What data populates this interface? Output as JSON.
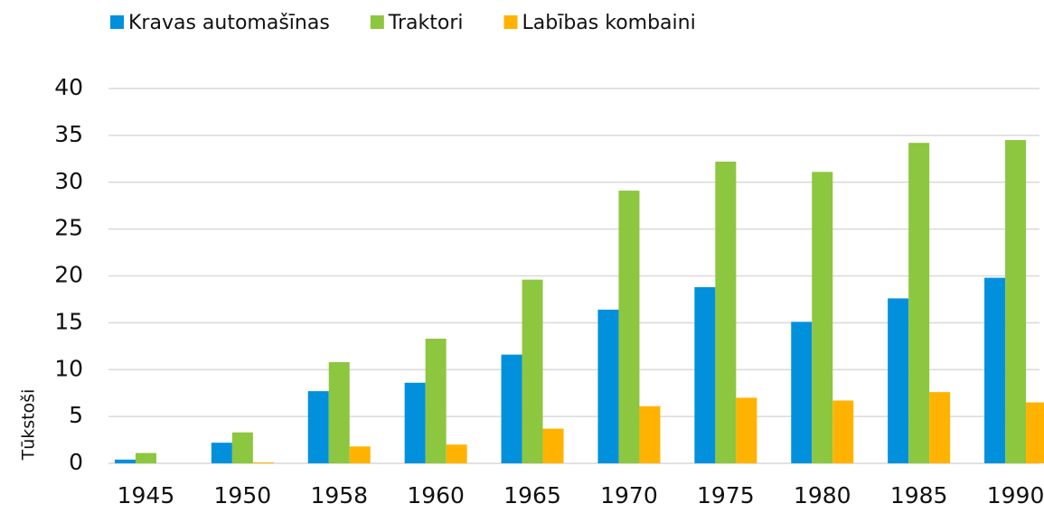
{
  "chart_data": {
    "type": "bar",
    "categories": [
      "1945",
      "1950",
      "1958",
      "1960",
      "1965",
      "1970",
      "1975",
      "1980",
      "1985",
      "1990"
    ],
    "series": [
      {
        "name": "Kravas automašīnas",
        "color": "#0090dc",
        "values": [
          0.4,
          2.2,
          7.7,
          8.6,
          11.6,
          16.4,
          18.8,
          15.1,
          17.6,
          19.8
        ]
      },
      {
        "name": "Traktori",
        "color": "#8dc63f",
        "values": [
          1.1,
          3.3,
          10.8,
          13.3,
          19.6,
          29.1,
          32.2,
          31.1,
          34.2,
          34.5
        ]
      },
      {
        "name": "Labības kombaini",
        "color": "#ffb300",
        "values": [
          0,
          0.1,
          1.8,
          2.0,
          3.7,
          6.1,
          7.0,
          6.7,
          7.6,
          6.5
        ]
      }
    ],
    "ylabel": "Tūkstoši",
    "ylim": [
      0,
      40
    ],
    "yticks": [
      0,
      5,
      10,
      15,
      20,
      25,
      30,
      35,
      40
    ],
    "grid": true,
    "legend": "top"
  }
}
